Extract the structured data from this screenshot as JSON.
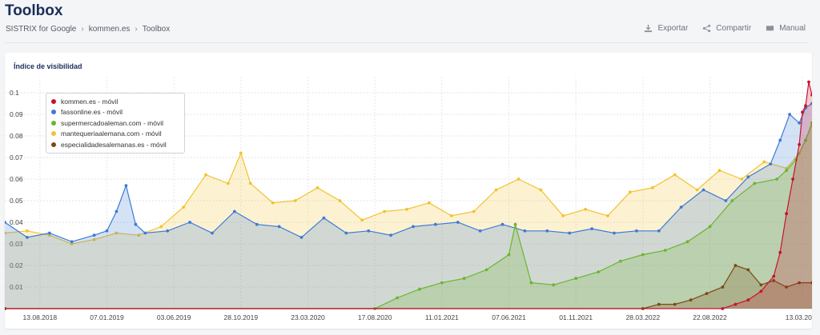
{
  "header": {
    "title": "Toolbox",
    "breadcrumb": [
      "SISTRIX for Google",
      "kommen.es",
      "Toolbox"
    ]
  },
  "actions": {
    "export_label": "Exportar",
    "share_label": "Compartir",
    "manual_label": "Manual"
  },
  "card": {
    "title": "Índice de visibilidad"
  },
  "chart_data": {
    "type": "area",
    "ylim": [
      0,
      0.1
    ],
    "yticks": [
      0.01,
      0.02,
      0.03,
      0.04,
      0.05,
      0.06,
      0.07,
      0.08,
      0.09,
      0.1
    ],
    "ytick_labels": [
      "0.01",
      "0.02",
      "0.03",
      "0.04",
      "0.05",
      "0.06",
      "0.07",
      "0.08",
      "0.09",
      "0.1"
    ],
    "xlim": [
      "2018-05-28",
      "2023-04-03"
    ],
    "xticks": [
      "2018-08-13",
      "2019-01-07",
      "2019-06-03",
      "2019-10-28",
      "2020-03-23",
      "2020-08-17",
      "2021-01-11",
      "2021-06-07",
      "2021-11-01",
      "2022-03-28",
      "2022-08-22",
      "2023-03-13"
    ],
    "xtick_labels": [
      "13.08.2018",
      "07.01.2019",
      "03.06.2019",
      "28.10.2019",
      "23.03.2020",
      "17.08.2020",
      "11.01.2021",
      "07.06.2021",
      "01.11.2021",
      "28.03.2022",
      "22.08.2022",
      "13.03.2023"
    ],
    "grid": true,
    "legend_position": "top-left",
    "series": [
      {
        "name": "kommen.es - móvil",
        "color": "#c8102e",
        "x": [
          "2018-05-28",
          "2022-09-19",
          "2022-10-17",
          "2022-11-14",
          "2022-12-12",
          "2023-01-09",
          "2023-01-23",
          "2023-02-06",
          "2023-02-20",
          "2023-03-06",
          "2023-03-13",
          "2023-03-20",
          "2023-03-27",
          "2023-04-03"
        ],
        "values": [
          0,
          0,
          0.002,
          0.004,
          0.008,
          0.015,
          0.026,
          0.044,
          0.06,
          0.076,
          0.091,
          0.094,
          0.105,
          0.099
        ]
      },
      {
        "name": "fassonline.es - móvil",
        "color": "#3d7ad6",
        "x": [
          "2018-05-28",
          "2018-07-16",
          "2018-09-03",
          "2018-10-22",
          "2018-12-10",
          "2019-01-07",
          "2019-01-28",
          "2019-02-18",
          "2019-03-11",
          "2019-04-01",
          "2019-05-20",
          "2019-07-08",
          "2019-08-26",
          "2019-10-14",
          "2019-12-02",
          "2020-01-20",
          "2020-03-09",
          "2020-04-27",
          "2020-06-15",
          "2020-08-03",
          "2020-09-21",
          "2020-11-09",
          "2020-12-28",
          "2021-02-15",
          "2021-04-05",
          "2021-05-24",
          "2021-07-12",
          "2021-08-30",
          "2021-10-18",
          "2021-12-06",
          "2022-01-24",
          "2022-03-14",
          "2022-05-02",
          "2022-06-20",
          "2022-08-08",
          "2022-09-26",
          "2022-11-14",
          "2023-01-02",
          "2023-01-23",
          "2023-02-13",
          "2023-03-06",
          "2023-03-20",
          "2023-04-03"
        ],
        "values": [
          0.04,
          0.033,
          0.035,
          0.031,
          0.034,
          0.036,
          0.045,
          0.057,
          0.039,
          0.035,
          0.036,
          0.04,
          0.035,
          0.045,
          0.039,
          0.038,
          0.033,
          0.042,
          0.035,
          0.036,
          0.034,
          0.038,
          0.039,
          0.04,
          0.036,
          0.039,
          0.036,
          0.036,
          0.035,
          0.037,
          0.035,
          0.036,
          0.036,
          0.047,
          0.055,
          0.05,
          0.061,
          0.067,
          0.078,
          0.09,
          0.086,
          0.093,
          0.095
        ]
      },
      {
        "name": "supermercadoaleman.com - móvil",
        "color": "#6bb52e",
        "x": [
          "2018-05-28",
          "2020-08-17",
          "2020-10-05",
          "2020-11-23",
          "2021-01-11",
          "2021-03-01",
          "2021-04-19",
          "2021-06-07",
          "2021-06-21",
          "2021-07-26",
          "2021-09-13",
          "2021-11-01",
          "2021-12-20",
          "2022-02-07",
          "2022-03-28",
          "2022-05-16",
          "2022-07-04",
          "2022-08-22",
          "2022-10-10",
          "2022-11-28",
          "2023-01-16",
          "2023-02-06",
          "2023-02-27",
          "2023-03-20",
          "2023-04-03"
        ],
        "values": [
          0,
          0,
          0.005,
          0.009,
          0.012,
          0.014,
          0.018,
          0.025,
          0.039,
          0.012,
          0.011,
          0.014,
          0.017,
          0.022,
          0.025,
          0.027,
          0.031,
          0.038,
          0.05,
          0.058,
          0.06,
          0.064,
          0.069,
          0.078,
          0.086
        ]
      },
      {
        "name": "mantequeriaalemana.com - móvil",
        "color": "#f2c230",
        "x": [
          "2018-05-28",
          "2018-07-16",
          "2018-09-03",
          "2018-10-22",
          "2018-12-10",
          "2019-01-28",
          "2019-03-18",
          "2019-05-06",
          "2019-06-24",
          "2019-08-12",
          "2019-09-30",
          "2019-10-28",
          "2019-11-18",
          "2020-01-06",
          "2020-02-24",
          "2020-04-13",
          "2020-06-01",
          "2020-07-20",
          "2020-09-07",
          "2020-10-26",
          "2020-12-14",
          "2021-02-01",
          "2021-03-22",
          "2021-05-10",
          "2021-06-28",
          "2021-08-16",
          "2021-10-04",
          "2021-11-22",
          "2022-01-10",
          "2022-02-28",
          "2022-04-18",
          "2022-06-06",
          "2022-07-25",
          "2022-09-12",
          "2022-10-31",
          "2022-12-19",
          "2023-02-06",
          "2023-03-06",
          "2023-04-03"
        ],
        "values": [
          0.035,
          0.036,
          0.034,
          0.03,
          0.032,
          0.035,
          0.034,
          0.038,
          0.047,
          0.062,
          0.058,
          0.072,
          0.058,
          0.049,
          0.05,
          0.056,
          0.05,
          0.041,
          0.045,
          0.046,
          0.049,
          0.043,
          0.045,
          0.055,
          0.06,
          0.055,
          0.043,
          0.046,
          0.043,
          0.054,
          0.056,
          0.062,
          0.055,
          0.064,
          0.06,
          0.068,
          0.065,
          0.072,
          0.085
        ]
      },
      {
        "name": "especialidadesalemanas.es - móvil",
        "color": "#7a4a14",
        "x": [
          "2018-05-28",
          "2022-03-28",
          "2022-05-02",
          "2022-06-06",
          "2022-07-11",
          "2022-08-15",
          "2022-09-19",
          "2022-10-17",
          "2022-11-14",
          "2022-12-12",
          "2023-01-09",
          "2023-02-06",
          "2023-03-06",
          "2023-04-03"
        ],
        "values": [
          0,
          0,
          0.002,
          0.002,
          0.004,
          0.007,
          0.01,
          0.02,
          0.018,
          0.011,
          0.013,
          0.01,
          0.012,
          0.012
        ]
      }
    ]
  }
}
